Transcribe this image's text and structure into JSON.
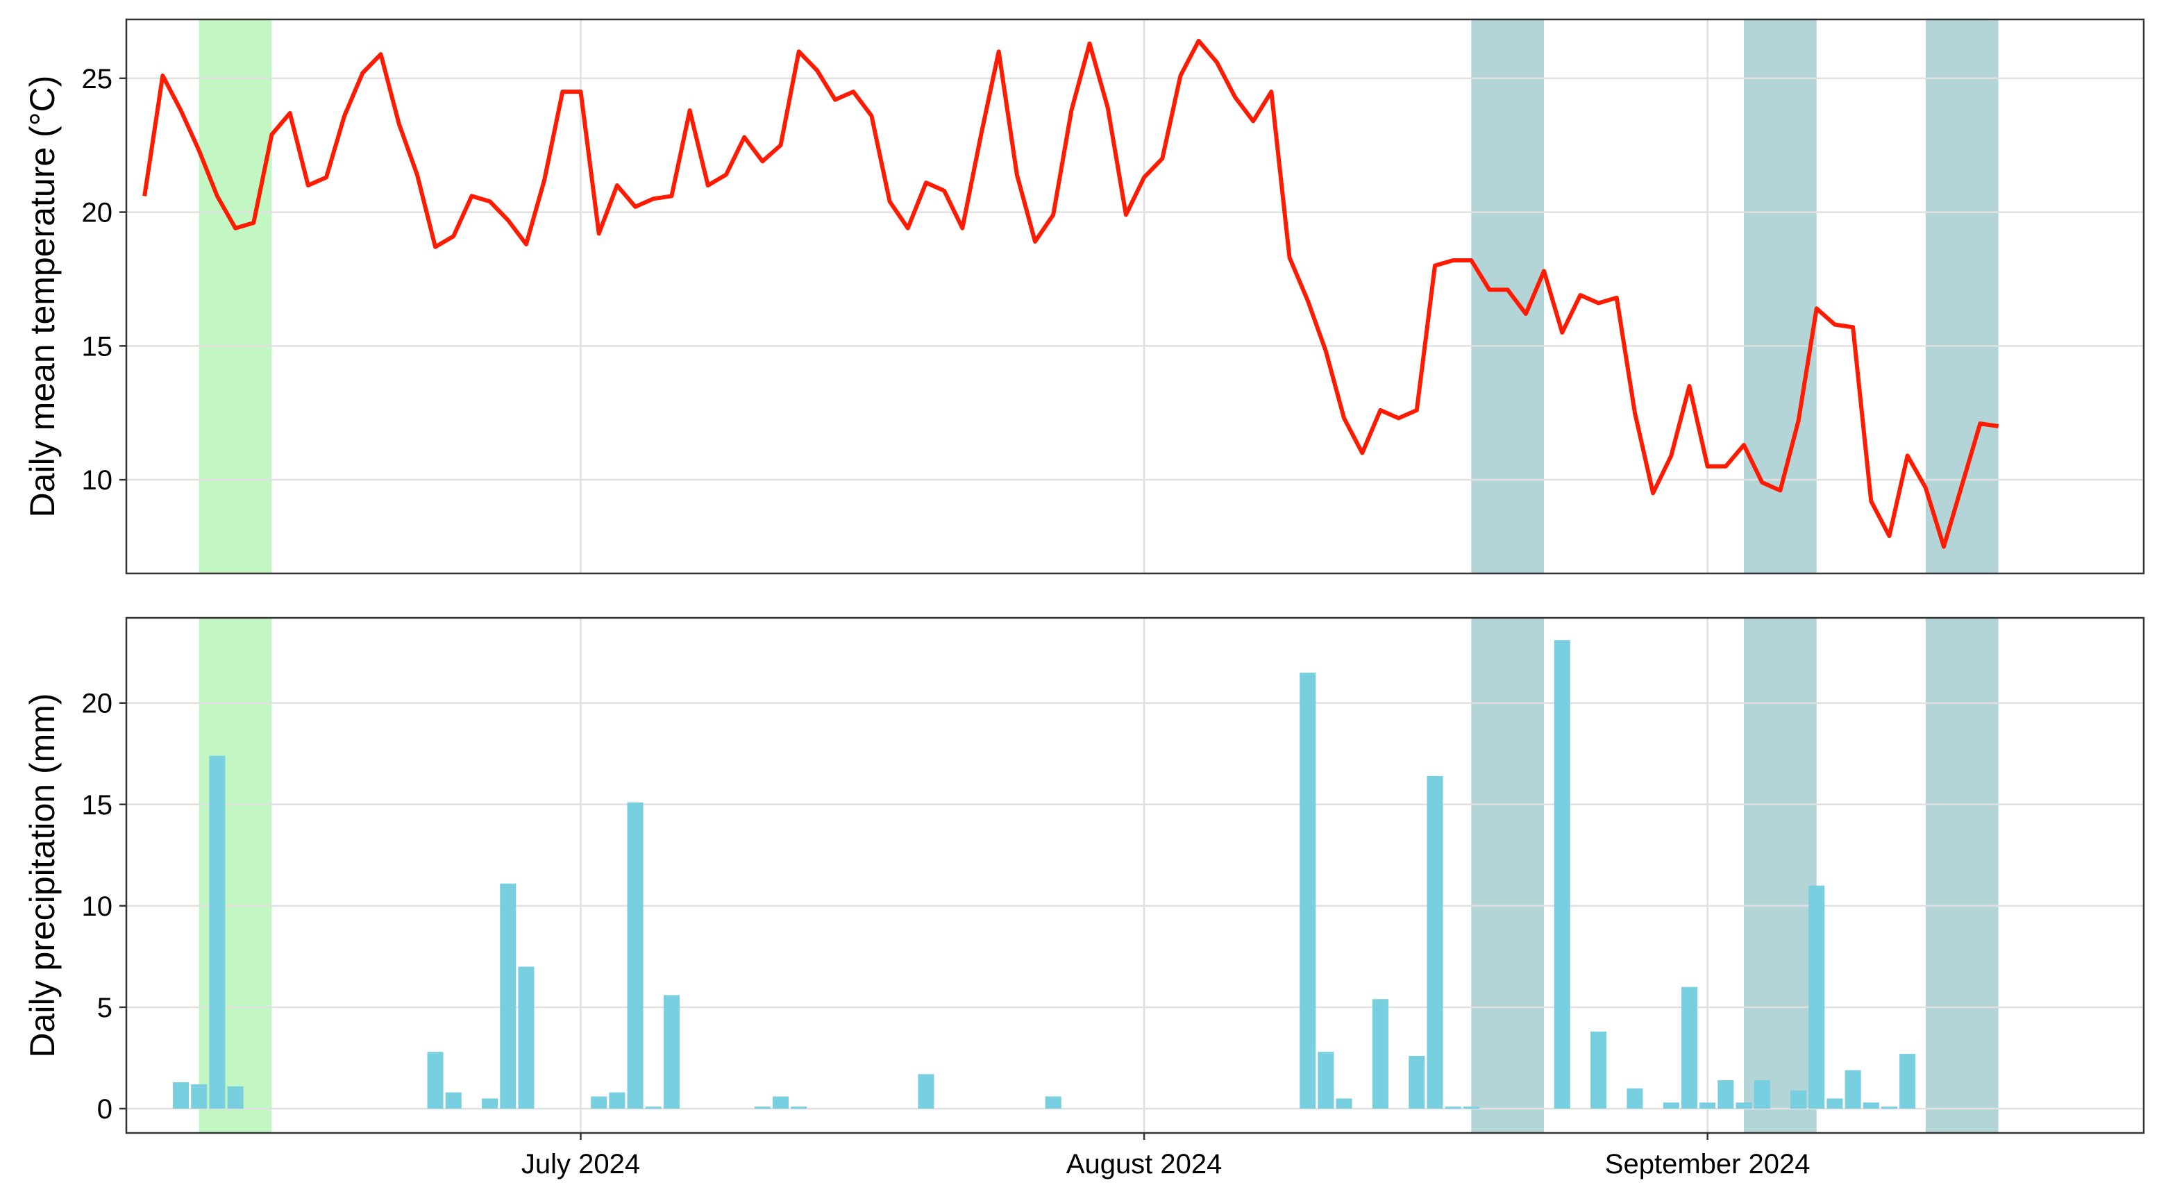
{
  "colors": {
    "temperature_line": "#ff1a00",
    "precip_bar": "#78cfe0",
    "highlight_green": "#90ee90",
    "highlight_teal": "#6aacb0",
    "grid": "#e0e0e0",
    "panel_border": "#333333"
  },
  "chart_data": [
    {
      "type": "line",
      "ylabel": "Daily mean temperature (°C)",
      "xlabel": "",
      "x_axis": "date",
      "x_range": [
        "2024-06-06",
        "2024-09-25"
      ],
      "ylim": [
        6.5,
        27.2
      ],
      "yticks": [
        10,
        15,
        20,
        25
      ],
      "grid": true,
      "x_tick_labels": [
        {
          "date": "2024-07-01",
          "label": "July 2024"
        },
        {
          "date": "2024-08-01",
          "label": "August 2024"
        },
        {
          "date": "2024-09-01",
          "label": "September 2024"
        }
      ],
      "highlights": [
        {
          "start": "2024-06-10",
          "end": "2024-06-14",
          "color": "green"
        },
        {
          "start": "2024-08-19",
          "end": "2024-08-23",
          "color": "teal"
        },
        {
          "start": "2024-09-03",
          "end": "2024-09-07",
          "color": "teal"
        },
        {
          "start": "2024-09-13",
          "end": "2024-09-17",
          "color": "teal"
        }
      ],
      "start_date": "2024-06-07",
      "values": [
        20.6,
        25.1,
        23.8,
        22.3,
        20.6,
        19.4,
        19.6,
        22.9,
        23.7,
        21.0,
        21.3,
        23.6,
        25.2,
        25.9,
        23.3,
        21.4,
        18.7,
        19.1,
        20.6,
        20.4,
        19.7,
        18.8,
        21.2,
        24.5,
        24.5,
        19.2,
        21.0,
        20.2,
        20.5,
        20.6,
        23.8,
        21.0,
        21.4,
        22.8,
        21.9,
        22.5,
        26.0,
        25.3,
        24.2,
        24.5,
        23.6,
        20.4,
        19.4,
        21.1,
        20.8,
        19.4,
        22.8,
        26.0,
        21.4,
        18.9,
        19.9,
        23.8,
        26.3,
        23.9,
        19.9,
        21.3,
        22.0,
        25.1,
        26.4,
        25.6,
        24.3,
        23.4,
        24.5,
        18.3,
        16.7,
        14.8,
        12.3,
        11.0,
        12.6,
        12.3,
        12.6,
        18.0,
        18.2,
        18.2,
        17.1,
        17.1,
        16.2,
        17.8,
        15.5,
        16.9,
        16.6,
        16.8,
        12.5,
        9.5,
        10.9,
        13.5,
        10.5,
        10.5,
        11.3,
        9.9,
        9.6,
        12.2,
        16.4,
        15.8,
        15.7,
        9.2,
        7.9,
        10.9,
        9.7,
        7.5,
        9.8,
        12.1,
        12.0
      ]
    },
    {
      "type": "bar",
      "ylabel": "Daily precipitation (mm)",
      "xlabel": "",
      "x_axis": "date",
      "x_range": [
        "2024-06-06",
        "2024-09-25"
      ],
      "ylim": [
        -1.2,
        24.2
      ],
      "yticks": [
        0,
        5,
        10,
        15,
        20
      ],
      "grid": true,
      "x_tick_labels": [
        {
          "date": "2024-07-01",
          "label": "July 2024"
        },
        {
          "date": "2024-08-01",
          "label": "August 2024"
        },
        {
          "date": "2024-09-01",
          "label": "September 2024"
        }
      ],
      "highlights": [
        {
          "start": "2024-06-10",
          "end": "2024-06-14",
          "color": "green"
        },
        {
          "start": "2024-08-19",
          "end": "2024-08-23",
          "color": "teal"
        },
        {
          "start": "2024-09-03",
          "end": "2024-09-07",
          "color": "teal"
        },
        {
          "start": "2024-09-13",
          "end": "2024-09-17",
          "color": "teal"
        }
      ],
      "start_date": "2024-06-07",
      "values": [
        0,
        0,
        1.3,
        1.2,
        17.4,
        1.1,
        0,
        0,
        0,
        0,
        0,
        0,
        0,
        0,
        0,
        0,
        2.8,
        0.8,
        0,
        0.5,
        11.1,
        7.0,
        0,
        0,
        0,
        0.6,
        0.8,
        15.1,
        0.1,
        5.6,
        0,
        0,
        0,
        0,
        0.1,
        0.6,
        0.1,
        0,
        0,
        0,
        0,
        0,
        0,
        1.7,
        0,
        0,
        0,
        0,
        0,
        0,
        0.6,
        0,
        0,
        0,
        0,
        0,
        0,
        0,
        0,
        0,
        0,
        0,
        0,
        0,
        21.5,
        2.8,
        0.5,
        0,
        5.4,
        0,
        2.6,
        16.4,
        0.1,
        0.1,
        0,
        0,
        0,
        0,
        23.1,
        0,
        3.8,
        0,
        1.0,
        0,
        0.3,
        6.0,
        0.3,
        1.4,
        0.3,
        1.4,
        0,
        0.9,
        11.0,
        0.5,
        1.9,
        0.3,
        0.1,
        2.7,
        0,
        0,
        0,
        0,
        0
      ]
    }
  ]
}
